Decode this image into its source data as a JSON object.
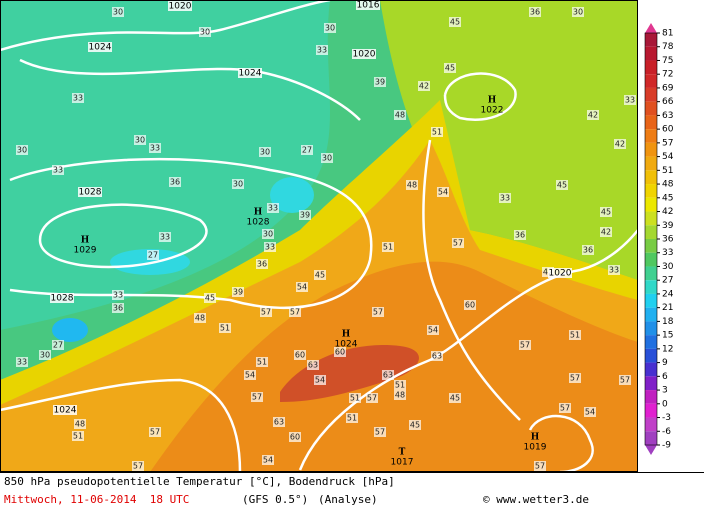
{
  "map": {
    "pressure_centers": [
      {
        "letter": "H",
        "value": 1022
      },
      {
        "letter": "H",
        "value": 1028
      },
      {
        "letter": "H",
        "value": 1029
      },
      {
        "letter": "H",
        "value": 1024
      },
      {
        "letter": "T",
        "value": 1017
      },
      {
        "letter": "H",
        "value": 1019
      }
    ],
    "isobar_labels": [
      1020,
      1016,
      1024,
      1024,
      1020,
      1028,
      1028,
      1024,
      1020
    ],
    "contour_labels": [
      30,
      30,
      33,
      30,
      39,
      42,
      45,
      45,
      33,
      30,
      33,
      30,
      33,
      36,
      30,
      30,
      27,
      30,
      48,
      51,
      48,
      54,
      33,
      36,
      57,
      51,
      30,
      33,
      33,
      33,
      27,
      39,
      36,
      45,
      54,
      39,
      45,
      33,
      36,
      48,
      51,
      57,
      57,
      57,
      54,
      60,
      57,
      51,
      30,
      27,
      33,
      51,
      60,
      63,
      60,
      54,
      54,
      63,
      63,
      51,
      48,
      51,
      57,
      45,
      57,
      63,
      60,
      51,
      57,
      45,
      57,
      57,
      54,
      57,
      51,
      48,
      54,
      57,
      57,
      57,
      45,
      42,
      42,
      36,
      33,
      45,
      42,
      33,
      42,
      36,
      30
    ]
  },
  "legend": {
    "ticks": [
      81,
      78,
      75,
      72,
      69,
      66,
      63,
      60,
      57,
      54,
      51,
      48,
      45,
      42,
      39,
      36,
      33,
      30,
      27,
      24,
      21,
      18,
      15,
      12,
      9,
      6,
      3,
      0,
      -3,
      -6,
      -9
    ],
    "colors": [
      "#a81838",
      "#b81830",
      "#c82028",
      "#d02828",
      "#d83c28",
      "#e05020",
      "#e86418",
      "#ee7c14",
      "#f09410",
      "#f0aa10",
      "#f0c008",
      "#f0d400",
      "#ece800",
      "#cce020",
      "#a4d830",
      "#78cc44",
      "#50c860",
      "#40d090",
      "#30d8c8",
      "#20d0f0",
      "#20b0f0",
      "#2090e8",
      "#2070e0",
      "#2850d8",
      "#4830d0",
      "#8020c8",
      "#c020c0",
      "#e020d0",
      "#c040c8",
      "#a040c0"
    ]
  },
  "footer": {
    "title": "850 hPa pseudopotentielle Temperatur [°C], Bodendruck [hPa]",
    "date": "Mittwoch, 11-06-2014  18 UTC",
    "model": "(GFS 0.5°)",
    "run": "(Analyse)",
    "credit": "© www.wetter3.de"
  }
}
